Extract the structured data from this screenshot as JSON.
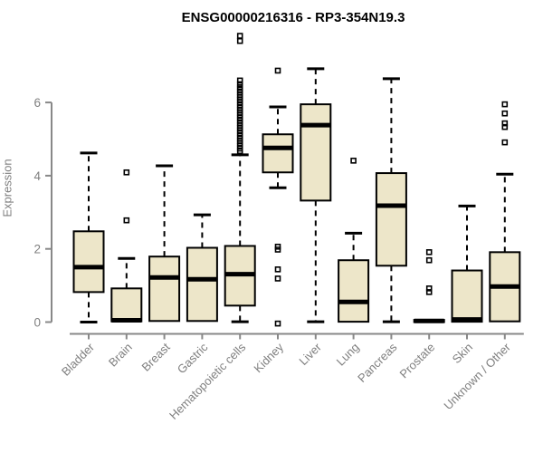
{
  "colors": {
    "background": "#ffffff",
    "box_fill": "#ede6c9",
    "box_border": "#000000",
    "median": "#000000",
    "whisker": "#000000",
    "outlier": "#000000",
    "axis": "#888888",
    "tick_label": "#7f7f7f",
    "title": "#000000"
  },
  "chart_data": {
    "type": "boxplot",
    "title": "ENSG00000216316 - RP3-354N19.3",
    "xlabel": "",
    "ylabel": "Expression",
    "yticks": [
      0,
      2,
      4,
      6
    ],
    "ylim": [
      -0.3,
      7.95
    ],
    "grid": false,
    "legend": "none",
    "categories": [
      "Bladder",
      "Brain",
      "Breast",
      "Gastric",
      "Hematopoietic cells",
      "Kidney",
      "Liver",
      "Lung",
      "Pancreas",
      "Prostate",
      "Skin",
      "Unknown / Other"
    ],
    "series": [
      {
        "name": "Bladder",
        "whisker_low": 0.0,
        "q1": 0.82,
        "median": 1.5,
        "q3": 2.48,
        "whisker_high": 4.62,
        "outliers": []
      },
      {
        "name": "Brain",
        "whisker_low": 0.02,
        "q1": 0.02,
        "median": 0.05,
        "q3": 0.92,
        "whisker_high": 1.74,
        "outliers": [
          4.09,
          2.78
        ]
      },
      {
        "name": "Breast",
        "whisker_low": 0.03,
        "q1": 0.03,
        "median": 1.22,
        "q3": 1.79,
        "whisker_high": 4.27,
        "outliers": []
      },
      {
        "name": "Gastric",
        "whisker_low": 0.03,
        "q1": 0.03,
        "median": 1.17,
        "q3": 2.03,
        "whisker_high": 2.93,
        "outliers": []
      },
      {
        "name": "Hematopoietic cells",
        "whisker_low": 0.01,
        "q1": 0.45,
        "median": 1.31,
        "q3": 2.08,
        "whisker_high": 4.57,
        "outliers": [
          7.82,
          7.68,
          6.6,
          6.5,
          6.42,
          6.35,
          6.28,
          6.21,
          6.14,
          6.07,
          6.0,
          5.93,
          5.86,
          5.79,
          5.72,
          5.65,
          5.58,
          5.51,
          5.44,
          5.37,
          5.3,
          5.23,
          5.16,
          5.09,
          5.02,
          4.95,
          4.88,
          4.81,
          4.74,
          4.67
        ]
      },
      {
        "name": "Kidney",
        "whisker_low": 3.67,
        "q1": 4.09,
        "median": 4.76,
        "q3": 5.13,
        "whisker_high": 5.88,
        "outliers": [
          6.87,
          2.06,
          1.98,
          1.44,
          1.19,
          -0.04
        ]
      },
      {
        "name": "Liver",
        "whisker_low": 0.01,
        "q1": 3.32,
        "median": 5.38,
        "q3": 5.95,
        "whisker_high": 6.92,
        "outliers": []
      },
      {
        "name": "Lung",
        "whisker_low": 0.01,
        "q1": 0.01,
        "median": 0.55,
        "q3": 1.69,
        "whisker_high": 2.43,
        "outliers": [
          4.41
        ]
      },
      {
        "name": "Pancreas",
        "whisker_low": 0.01,
        "q1": 1.54,
        "median": 3.18,
        "q3": 4.07,
        "whisker_high": 6.65,
        "outliers": []
      },
      {
        "name": "Prostate",
        "whisker_low": 0.0,
        "q1": 0.0,
        "median": 0.03,
        "q3": 0.06,
        "whisker_high": 0.06,
        "outliers": [
          1.91,
          1.69,
          0.92,
          0.82
        ]
      },
      {
        "name": "Skin",
        "whisker_low": 0.01,
        "q1": 0.01,
        "median": 0.07,
        "q3": 1.41,
        "whisker_high": 3.17,
        "outliers": []
      },
      {
        "name": "Unknown / Other",
        "whisker_low": 0.02,
        "q1": 0.02,
        "median": 0.97,
        "q3": 1.91,
        "whisker_high": 4.04,
        "outliers": [
          5.95,
          5.7,
          5.43,
          5.33,
          4.91
        ]
      }
    ]
  }
}
